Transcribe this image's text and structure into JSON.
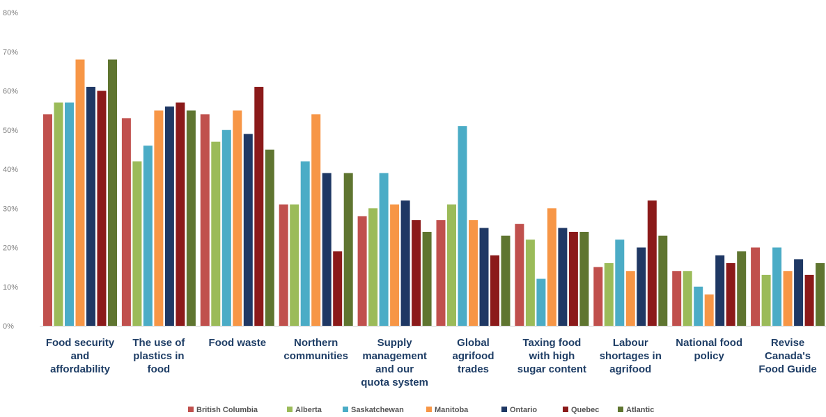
{
  "chart_data": {
    "type": "bar",
    "title": "",
    "xlabel": "",
    "ylabel": "",
    "ylim": [
      0,
      80
    ],
    "yticks": [
      "0%",
      "10%",
      "20%",
      "30%",
      "40%",
      "50%",
      "60%",
      "70%",
      "80%"
    ],
    "grid": false,
    "legend_position": "bottom",
    "categories": [
      [
        "Food security",
        "and",
        "affordability"
      ],
      [
        "The use of",
        "plastics in",
        "food"
      ],
      [
        "Food waste"
      ],
      [
        "Northern",
        "communities"
      ],
      [
        "Supply",
        "management",
        "and our",
        "quota system"
      ],
      [
        "Global",
        "agrifood",
        "trades"
      ],
      [
        "Taxing food",
        "with high",
        "sugar content"
      ],
      [
        "Labour",
        "shortages in",
        "agrifood"
      ],
      [
        "National food",
        "policy"
      ],
      [
        "Revise",
        "Canada's",
        "Food Guide"
      ]
    ],
    "series": [
      {
        "name": "British Columbia",
        "color": "#c0504d",
        "values": [
          54,
          53,
          54,
          31,
          28,
          27,
          26,
          15,
          14,
          20
        ]
      },
      {
        "name": "Alberta",
        "color": "#9bbb59",
        "values": [
          57,
          42,
          47,
          31,
          30,
          31,
          22,
          16,
          14,
          13
        ]
      },
      {
        "name": "Saskatchewan",
        "color": "#4bacc6",
        "values": [
          57,
          46,
          50,
          42,
          39,
          51,
          12,
          22,
          10,
          20
        ]
      },
      {
        "name": "Manitoba",
        "color": "#f79646",
        "values": [
          68,
          55,
          55,
          54,
          31,
          27,
          30,
          14,
          8,
          14
        ]
      },
      {
        "name": "Ontario",
        "color": "#1f3864",
        "values": [
          61,
          56,
          49,
          39,
          32,
          25,
          25,
          20,
          18,
          17
        ]
      },
      {
        "name": "Quebec",
        "color": "#8b1a1a",
        "values": [
          60,
          57,
          61,
          19,
          27,
          18,
          24,
          32,
          16,
          13
        ]
      },
      {
        "name": "Atlantic",
        "color": "#5f7530",
        "values": [
          68,
          55,
          45,
          39,
          24,
          23,
          24,
          23,
          19,
          16
        ]
      }
    ]
  }
}
